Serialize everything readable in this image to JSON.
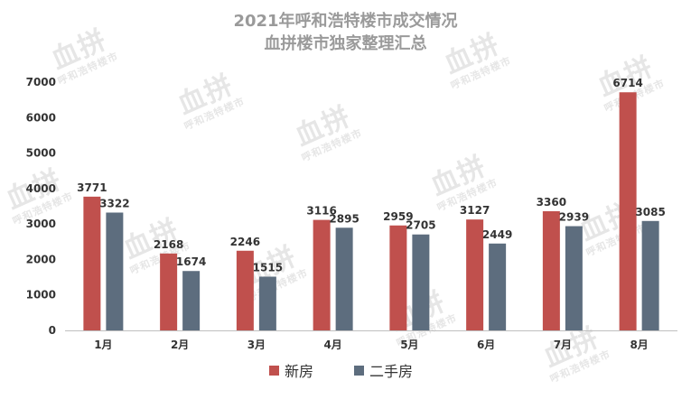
{
  "watermark": {
    "brand": "血拼",
    "sub": "呼和浩特楼市"
  },
  "chart_data": {
    "type": "bar",
    "title": "2021年呼和浩特楼市成交情况",
    "subtitle": "血拼楼市独家整理汇总",
    "categories": [
      "1月",
      "2月",
      "3月",
      "4月",
      "5月",
      "6月",
      "7月",
      "8月"
    ],
    "series": [
      {
        "name": "新房",
        "color": "#c0504d",
        "values": [
          3771,
          2168,
          2246,
          3116,
          2959,
          3127,
          3360,
          6714
        ]
      },
      {
        "name": "二手房",
        "color": "#5d6d7e",
        "values": [
          3322,
          1674,
          1515,
          2895,
          2705,
          2449,
          2939,
          3085
        ]
      }
    ],
    "yticks": [
      0,
      1000,
      2000,
      3000,
      4000,
      5000,
      6000,
      7000
    ],
    "ylim": [
      0,
      7000
    ],
    "grid": false,
    "legend": "bottom"
  }
}
